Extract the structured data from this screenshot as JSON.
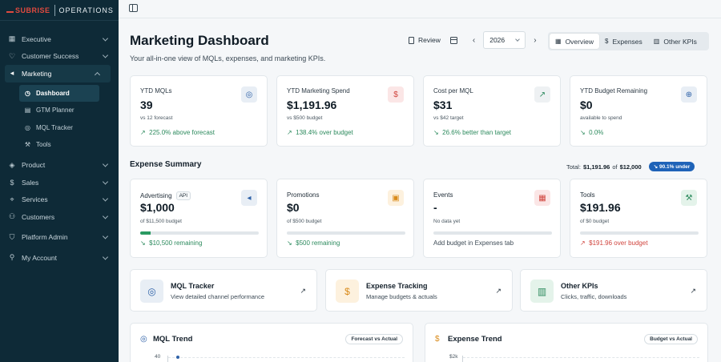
{
  "brand": {
    "part1": "SUBRISE",
    "part2": "OPERATIONS"
  },
  "sidebar": {
    "items": [
      {
        "label": "Executive",
        "icon": "grid-icon"
      },
      {
        "label": "Customer Success",
        "icon": "heart-icon"
      },
      {
        "label": "Marketing",
        "icon": "megaphone-icon"
      },
      {
        "label": "Product",
        "icon": "layers-icon"
      },
      {
        "label": "Sales",
        "icon": "dollar-icon"
      },
      {
        "label": "Services",
        "icon": "pin-icon"
      },
      {
        "label": "Customers",
        "icon": "users-icon"
      },
      {
        "label": "Platform Admin",
        "icon": "shield-icon"
      },
      {
        "label": "My Account",
        "icon": "user-icon"
      }
    ],
    "marketing_sub": [
      {
        "label": "Dashboard",
        "icon": "clock-icon"
      },
      {
        "label": "GTM Planner",
        "icon": "doc-icon"
      },
      {
        "label": "MQL Tracker",
        "icon": "target-icon"
      },
      {
        "label": "Tools",
        "icon": "wrench-icon"
      }
    ]
  },
  "header": {
    "title": "Marketing Dashboard",
    "subtitle": "Your all-in-one view of MQLs, expenses, and marketing KPIs.",
    "review_label": "Review",
    "year": "2026",
    "tabs": [
      {
        "label": "Overview",
        "icon": "grid-icon"
      },
      {
        "label": "Expenses",
        "icon": "dollar-icon"
      },
      {
        "label": "Other KPIs",
        "icon": "chart-icon"
      }
    ]
  },
  "kpis": [
    {
      "label": "YTD MQLs",
      "value": "39",
      "note": "vs 12 forecast",
      "trend_arrow": "↗",
      "trend": "225.0% above forecast",
      "icon": "target-icon",
      "icon_bg": "#e8eef5",
      "icon_color": "#2f62a8"
    },
    {
      "label": "YTD Marketing Spend",
      "value": "$1,191.96",
      "note": "vs $500 budget",
      "trend_arrow": "↗",
      "trend": "138.4% over budget",
      "icon": "dollar-icon",
      "icon_bg": "#fbe6e6",
      "icon_color": "#d0443d"
    },
    {
      "label": "Cost per MQL",
      "value": "$31",
      "note": "vs $42 target",
      "trend_arrow": "↘",
      "trend": "26.6% better than target",
      "icon": "trend-up-icon",
      "icon_bg": "#eef1f3",
      "icon_color": "#2c8a5d"
    },
    {
      "label": "YTD Budget Remaining",
      "value": "$0",
      "note": "available to spend",
      "trend_arrow": "↘",
      "trend": "0.0%",
      "icon": "globe-icon",
      "icon_bg": "#e8eef5",
      "icon_color": "#2f62a8"
    }
  ],
  "expense_summary": {
    "title": "Expense Summary",
    "total_label": "Total:",
    "total_value": "$1,191.96",
    "of_label": "of",
    "budget_value": "$12,000",
    "pill": "↘ 90.1% under",
    "cards": [
      {
        "label": "Advertising",
        "badge": "API",
        "value": "$1,000",
        "note": "of $11,500 budget",
        "progress": 0.087,
        "foot_arrow": "↘",
        "foot": "$10,500 remaining",
        "foot_class": "good",
        "icon": "megaphone-icon",
        "icon_bg": "#e8eef5",
        "icon_color": "#2f62a8"
      },
      {
        "label": "Promotions",
        "badge": "",
        "value": "$0",
        "note": "of $500 budget",
        "progress": 0,
        "foot_arrow": "↘",
        "foot": "$500 remaining",
        "foot_class": "good",
        "icon": "gift-icon",
        "icon_bg": "#fdf1de",
        "icon_color": "#d98b1b"
      },
      {
        "label": "Events",
        "badge": "",
        "value": "-",
        "note": "No data yet",
        "progress": 0,
        "foot_arrow": "",
        "foot": "Add budget in Expenses tab",
        "foot_class": "muted",
        "icon": "calendar-icon",
        "icon_bg": "#fbe6e6",
        "icon_color": "#d0443d"
      },
      {
        "label": "Tools",
        "badge": "",
        "value": "$191.96",
        "note": "of $0 budget",
        "progress": 0,
        "foot_arrow": "↗",
        "foot": "$191.96 over budget",
        "foot_class": "bad",
        "icon": "wrench-icon",
        "icon_bg": "#e4f3ea",
        "icon_color": "#2c8a5d"
      }
    ]
  },
  "links": [
    {
      "title": "MQL Tracker",
      "sub": "View detailed channel performance",
      "icon": "target-icon",
      "icon_bg": "#e8eef5",
      "icon_color": "#2f62a8"
    },
    {
      "title": "Expense Tracking",
      "sub": "Manage budgets & actuals",
      "icon": "dollar-icon",
      "icon_bg": "#fdf1de",
      "icon_color": "#d98b1b"
    },
    {
      "title": "Other KPIs",
      "sub": "Clicks, traffic, downloads",
      "icon": "bar-chart-icon",
      "icon_bg": "#e4f3ea",
      "icon_color": "#2c8a5d"
    }
  ],
  "charts": [
    {
      "title": "MQL Trend",
      "tag": "Forecast vs Actual",
      "ytick": "40",
      "icon": "target-icon"
    },
    {
      "title": "Expense Trend",
      "tag": "Budget vs Actual",
      "ytick": "$2k",
      "icon": "dollar-icon"
    }
  ]
}
